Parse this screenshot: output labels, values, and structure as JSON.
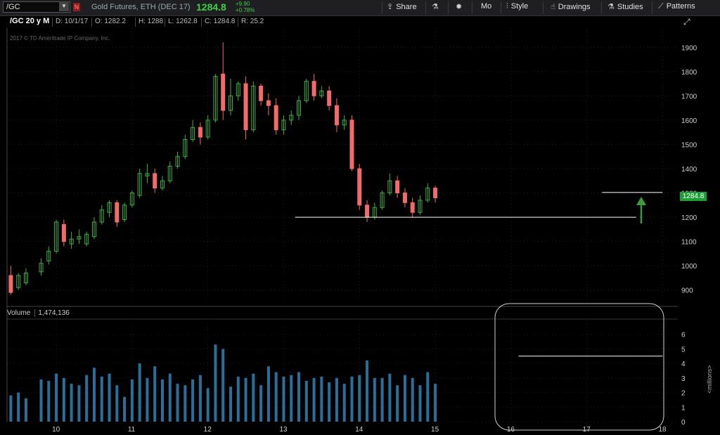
{
  "toolbar": {
    "symbol": "/GC",
    "description": "Gold Futures, ETH (DEC 17)",
    "last_price": "1284.8",
    "change_abs": "+9.90",
    "change_pct": "+0.78%",
    "buttons": [
      {
        "label": "Share",
        "icon": "share-icon"
      },
      {
        "label": "",
        "icon": "flask-icon"
      },
      {
        "label": "",
        "icon": "gear-icon"
      },
      {
        "label": "Mo",
        "icon": ""
      },
      {
        "label": "Style",
        "icon": "style-icon"
      },
      {
        "label": "Drawings",
        "icon": "drawings-icon"
      },
      {
        "label": "Studies",
        "icon": "studies-icon"
      },
      {
        "label": "Patterns",
        "icon": "patterns-icon"
      }
    ]
  },
  "header": {
    "chart_label": "/GC 20 y M",
    "date": "D: 10/1/17",
    "open": "O: 1282.2",
    "high": "H: 1288",
    "low": "L: 1262.8",
    "close": "C: 1284.8",
    "range": "R: 25.2"
  },
  "copyright": "2017 © TD Ameritrade IP Company, Inc.",
  "price_tag": "1284.8",
  "volume": {
    "label": "Volume",
    "value": "1,474,136",
    "unit_label": "<millions>"
  },
  "colors": {
    "up": "#3cb043",
    "down": "#f26b6b",
    "volume": "#2a6f9a",
    "accent": "#1c9f37"
  },
  "chart_data": {
    "type": "candlestick",
    "price_axis": {
      "ticks": [
        900,
        1000,
        1100,
        1200,
        1300,
        1400,
        1500,
        1600,
        1700,
        1800,
        1900
      ],
      "min": 850,
      "max": 1950
    },
    "volume_axis": {
      "ticks": [
        0,
        1,
        2,
        3,
        4,
        5,
        6
      ],
      "min": 0,
      "max": 7
    },
    "x_ticks": [
      "10",
      "11",
      "12",
      "13",
      "14",
      "15",
      "16",
      "17",
      "18"
    ],
    "x_range": [
      9.35,
      18.2
    ],
    "horizontal_lines": [
      {
        "panel": "price",
        "y": 1200,
        "x_from": 13.15,
        "x_to": 17.65
      },
      {
        "panel": "price",
        "y": 1302,
        "x_from": 17.2,
        "x_to": 18.0
      },
      {
        "panel": "volume",
        "y": 4.5,
        "x_from": 16.1,
        "x_to": 18.0
      }
    ],
    "candles": [
      [
        9.4,
        960,
        890,
        1000,
        880,
        1.8
      ],
      [
        9.5,
        910,
        960,
        970,
        900,
        2.0
      ],
      [
        9.6,
        930,
        970,
        990,
        920,
        1.6
      ],
      [
        9.8,
        975,
        1010,
        1030,
        960,
        2.9
      ],
      [
        9.9,
        1020,
        1060,
        1080,
        1005,
        2.8
      ],
      [
        10.0,
        1060,
        1180,
        1190,
        1050,
        3.3
      ],
      [
        10.1,
        1170,
        1100,
        1190,
        1080,
        3.0
      ],
      [
        10.2,
        1090,
        1110,
        1140,
        1070,
        2.6
      ],
      [
        10.3,
        1110,
        1120,
        1150,
        1090,
        2.5
      ],
      [
        10.4,
        1090,
        1130,
        1140,
        1080,
        3.2
      ],
      [
        10.5,
        1120,
        1180,
        1200,
        1110,
        3.7
      ],
      [
        10.6,
        1180,
        1230,
        1250,
        1170,
        3.1
      ],
      [
        10.7,
        1220,
        1260,
        1270,
        1200,
        3.3
      ],
      [
        10.8,
        1260,
        1180,
        1270,
        1160,
        2.5
      ],
      [
        10.9,
        1190,
        1250,
        1260,
        1180,
        1.7
      ],
      [
        11.0,
        1250,
        1300,
        1310,
        1240,
        2.9
      ],
      [
        11.1,
        1290,
        1380,
        1400,
        1280,
        4.0
      ],
      [
        11.2,
        1370,
        1380,
        1420,
        1340,
        3.0
      ],
      [
        11.3,
        1380,
        1320,
        1400,
        1300,
        3.8
      ],
      [
        11.4,
        1320,
        1350,
        1370,
        1310,
        2.9
      ],
      [
        11.5,
        1350,
        1410,
        1430,
        1340,
        3.3
      ],
      [
        11.6,
        1410,
        1450,
        1470,
        1400,
        2.6
      ],
      [
        11.7,
        1450,
        1520,
        1540,
        1440,
        2.5
      ],
      [
        11.8,
        1520,
        1570,
        1600,
        1510,
        2.9
      ],
      [
        11.9,
        1570,
        1530,
        1590,
        1500,
        3.2
      ],
      [
        12.0,
        1530,
        1600,
        1620,
        1520,
        2.3
      ],
      [
        12.1,
        1600,
        1780,
        1790,
        1590,
        5.3
      ],
      [
        12.2,
        1790,
        1640,
        1920,
        1600,
        5.0
      ],
      [
        12.3,
        1640,
        1700,
        1770,
        1620,
        2.4
      ],
      [
        12.4,
        1700,
        1750,
        1760,
        1680,
        3.1
      ],
      [
        12.5,
        1750,
        1560,
        1780,
        1520,
        3.0
      ],
      [
        12.6,
        1560,
        1740,
        1760,
        1550,
        3.3
      ],
      [
        12.7,
        1740,
        1680,
        1750,
        1660,
        2.5
      ],
      [
        12.8,
        1680,
        1660,
        1710,
        1620,
        3.8
      ],
      [
        12.9,
        1660,
        1560,
        1690,
        1540,
        3.4
      ],
      [
        13.0,
        1560,
        1600,
        1620,
        1540,
        3.1
      ],
      [
        13.1,
        1600,
        1620,
        1640,
        1580,
        3.2
      ],
      [
        13.2,
        1620,
        1680,
        1700,
        1600,
        3.4
      ],
      [
        13.3,
        1680,
        1760,
        1770,
        1670,
        2.8
      ],
      [
        13.4,
        1760,
        1700,
        1790,
        1680,
        3.0
      ],
      [
        13.5,
        1700,
        1720,
        1740,
        1690,
        3.1
      ],
      [
        13.6,
        1720,
        1660,
        1740,
        1640,
        2.7
      ],
      [
        13.7,
        1660,
        1580,
        1690,
        1550,
        3.0
      ],
      [
        13.8,
        1580,
        1600,
        1620,
        1560,
        2.6
      ],
      [
        13.9,
        1600,
        1400,
        1620,
        1390,
        3.1
      ],
      [
        14.0,
        1400,
        1250,
        1420,
        1230,
        3.2
      ],
      [
        14.1,
        1250,
        1200,
        1270,
        1180,
        4.2
      ],
      [
        14.2,
        1200,
        1240,
        1260,
        1190,
        3.0
      ],
      [
        14.3,
        1240,
        1300,
        1310,
        1230,
        3.0
      ],
      [
        14.4,
        1300,
        1350,
        1380,
        1290,
        3.3
      ],
      [
        14.5,
        1350,
        1300,
        1370,
        1280,
        2.5
      ],
      [
        14.6,
        1300,
        1260,
        1320,
        1240,
        3.2
      ],
      [
        14.7,
        1260,
        1220,
        1280,
        1200,
        3.0
      ],
      [
        14.8,
        1220,
        1270,
        1290,
        1210,
        2.5
      ],
      [
        14.9,
        1270,
        1320,
        1340,
        1260,
        3.4
      ],
      [
        15.0,
        1320,
        1280,
        1330,
        1260,
        2.6
      ]
    ]
  }
}
